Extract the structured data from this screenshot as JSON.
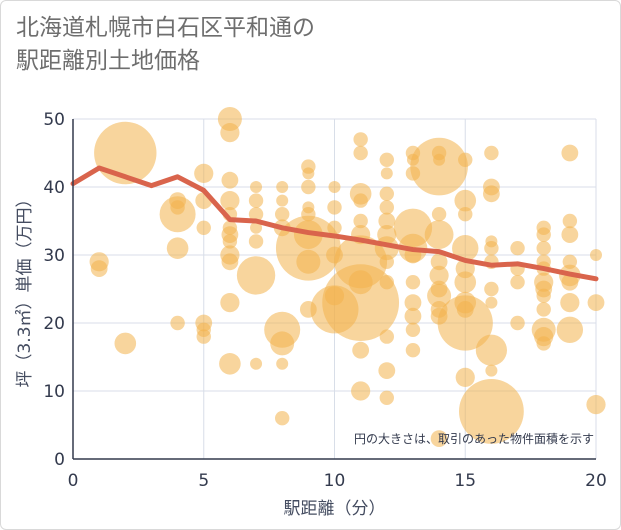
{
  "title": "北海道札幌市白石区平和通の\n駅距離別土地価格",
  "note": "円の大きさは、取引のあった物件面積を示す",
  "colors": {
    "bubble": "#f3b34d",
    "line": "#d9644c",
    "grid": "#d8dee8",
    "axis": "#333a4d"
  },
  "chart_data": {
    "type": "scatter",
    "xlabel": "駅距離（分）",
    "ylabel": "坪（3.3㎡）単価（万円）",
    "xlim": [
      0,
      20
    ],
    "ylim": [
      0,
      50
    ],
    "xticks": [
      "0",
      "5",
      "10",
      "15",
      "20"
    ],
    "yticks": [
      "0",
      "10",
      "20",
      "30",
      "40",
      "50"
    ],
    "grid": true,
    "bubbles": [
      {
        "x": 1,
        "y": 29,
        "s": 0.8
      },
      {
        "x": 1,
        "y": 28,
        "s": 0.7
      },
      {
        "x": 2,
        "y": 45,
        "s": 2.6
      },
      {
        "x": 2,
        "y": 17,
        "s": 0.9
      },
      {
        "x": 4,
        "y": 36,
        "s": 1.5
      },
      {
        "x": 4,
        "y": 38,
        "s": 0.7
      },
      {
        "x": 4,
        "y": 37,
        "s": 0.6
      },
      {
        "x": 4,
        "y": 31,
        "s": 0.9
      },
      {
        "x": 4,
        "y": 20,
        "s": 0.6
      },
      {
        "x": 5,
        "y": 42,
        "s": 0.8
      },
      {
        "x": 5,
        "y": 38,
        "s": 0.7
      },
      {
        "x": 5,
        "y": 34,
        "s": 0.6
      },
      {
        "x": 5,
        "y": 20,
        "s": 0.7
      },
      {
        "x": 5,
        "y": 19,
        "s": 0.6
      },
      {
        "x": 5,
        "y": 18,
        "s": 0.6
      },
      {
        "x": 6,
        "y": 50,
        "s": 1.0
      },
      {
        "x": 6,
        "y": 48,
        "s": 0.8
      },
      {
        "x": 6,
        "y": 41,
        "s": 0.7
      },
      {
        "x": 6,
        "y": 38,
        "s": 0.8
      },
      {
        "x": 6,
        "y": 36,
        "s": 0.6
      },
      {
        "x": 6,
        "y": 34,
        "s": 0.6
      },
      {
        "x": 6,
        "y": 33,
        "s": 0.7
      },
      {
        "x": 6,
        "y": 32,
        "s": 0.6
      },
      {
        "x": 6,
        "y": 30,
        "s": 0.8
      },
      {
        "x": 6,
        "y": 29,
        "s": 0.7
      },
      {
        "x": 6,
        "y": 23,
        "s": 0.8
      },
      {
        "x": 6,
        "y": 14,
        "s": 0.9
      },
      {
        "x": 7,
        "y": 40,
        "s": 0.5
      },
      {
        "x": 7,
        "y": 38,
        "s": 0.6
      },
      {
        "x": 7,
        "y": 36,
        "s": 0.6
      },
      {
        "x": 7,
        "y": 34,
        "s": 0.5
      },
      {
        "x": 7,
        "y": 32,
        "s": 0.6
      },
      {
        "x": 7,
        "y": 27,
        "s": 1.6
      },
      {
        "x": 7,
        "y": 14,
        "s": 0.5
      },
      {
        "x": 8,
        "y": 40,
        "s": 0.5
      },
      {
        "x": 8,
        "y": 38,
        "s": 0.5
      },
      {
        "x": 8,
        "y": 36,
        "s": 0.6
      },
      {
        "x": 8,
        "y": 34,
        "s": 0.7
      },
      {
        "x": 8,
        "y": 19,
        "s": 1.5
      },
      {
        "x": 8,
        "y": 17,
        "s": 1.0
      },
      {
        "x": 8,
        "y": 14,
        "s": 0.5
      },
      {
        "x": 8,
        "y": 6,
        "s": 0.6
      },
      {
        "x": 9,
        "y": 43,
        "s": 0.6
      },
      {
        "x": 9,
        "y": 42,
        "s": 0.5
      },
      {
        "x": 9,
        "y": 40,
        "s": 0.6
      },
      {
        "x": 9,
        "y": 37,
        "s": 0.5
      },
      {
        "x": 9,
        "y": 36,
        "s": 0.6
      },
      {
        "x": 9,
        "y": 33,
        "s": 1.2
      },
      {
        "x": 9,
        "y": 31,
        "s": 2.7
      },
      {
        "x": 9,
        "y": 29,
        "s": 1.0
      },
      {
        "x": 9,
        "y": 22,
        "s": 0.7
      },
      {
        "x": 10,
        "y": 40,
        "s": 0.5
      },
      {
        "x": 10,
        "y": 37,
        "s": 0.6
      },
      {
        "x": 10,
        "y": 34,
        "s": 0.6
      },
      {
        "x": 10,
        "y": 30,
        "s": 0.7
      },
      {
        "x": 10,
        "y": 24,
        "s": 0.8
      },
      {
        "x": 10,
        "y": 22,
        "s": 2.0
      },
      {
        "x": 11,
        "y": 47,
        "s": 0.6
      },
      {
        "x": 11,
        "y": 45,
        "s": 0.6
      },
      {
        "x": 11,
        "y": 39,
        "s": 0.9
      },
      {
        "x": 11,
        "y": 38,
        "s": 0.6
      },
      {
        "x": 11,
        "y": 35,
        "s": 0.6
      },
      {
        "x": 11,
        "y": 33,
        "s": 0.8
      },
      {
        "x": 11,
        "y": 29,
        "s": 2.2
      },
      {
        "x": 11,
        "y": 26,
        "s": 1.0
      },
      {
        "x": 11,
        "y": 23,
        "s": 3.2
      },
      {
        "x": 11,
        "y": 16,
        "s": 0.7
      },
      {
        "x": 11,
        "y": 10,
        "s": 0.8
      },
      {
        "x": 12,
        "y": 44,
        "s": 0.6
      },
      {
        "x": 12,
        "y": 42,
        "s": 0.5
      },
      {
        "x": 12,
        "y": 39,
        "s": 0.6
      },
      {
        "x": 12,
        "y": 37,
        "s": 0.6
      },
      {
        "x": 12,
        "y": 35,
        "s": 0.7
      },
      {
        "x": 12,
        "y": 33,
        "s": 0.8
      },
      {
        "x": 12,
        "y": 31,
        "s": 1.0
      },
      {
        "x": 12,
        "y": 29,
        "s": 0.6
      },
      {
        "x": 12,
        "y": 26,
        "s": 0.6
      },
      {
        "x": 12,
        "y": 18,
        "s": 0.6
      },
      {
        "x": 12,
        "y": 13,
        "s": 0.7
      },
      {
        "x": 12,
        "y": 9,
        "s": 0.6
      },
      {
        "x": 13,
        "y": 45,
        "s": 0.6
      },
      {
        "x": 13,
        "y": 44,
        "s": 0.5
      },
      {
        "x": 13,
        "y": 42,
        "s": 0.6
      },
      {
        "x": 13,
        "y": 34,
        "s": 1.6
      },
      {
        "x": 13,
        "y": 31,
        "s": 1.2
      },
      {
        "x": 13,
        "y": 30,
        "s": 0.7
      },
      {
        "x": 13,
        "y": 26,
        "s": 0.6
      },
      {
        "x": 13,
        "y": 23,
        "s": 0.7
      },
      {
        "x": 13,
        "y": 21,
        "s": 0.7
      },
      {
        "x": 13,
        "y": 19,
        "s": 0.6
      },
      {
        "x": 13,
        "y": 16,
        "s": 0.6
      },
      {
        "x": 14,
        "y": 45,
        "s": 0.6
      },
      {
        "x": 14,
        "y": 44,
        "s": 0.5
      },
      {
        "x": 14,
        "y": 43,
        "s": 2.4
      },
      {
        "x": 14,
        "y": 36,
        "s": 0.6
      },
      {
        "x": 14,
        "y": 33,
        "s": 1.2
      },
      {
        "x": 14,
        "y": 29,
        "s": 0.7
      },
      {
        "x": 14,
        "y": 27,
        "s": 0.8
      },
      {
        "x": 14,
        "y": 25,
        "s": 0.7
      },
      {
        "x": 14,
        "y": 24,
        "s": 1.0
      },
      {
        "x": 14,
        "y": 22,
        "s": 0.7
      },
      {
        "x": 14,
        "y": 21,
        "s": 0.7
      },
      {
        "x": 14,
        "y": 3,
        "s": 0.7
      },
      {
        "x": 15,
        "y": 44,
        "s": 0.6
      },
      {
        "x": 15,
        "y": 38,
        "s": 0.9
      },
      {
        "x": 15,
        "y": 36,
        "s": 0.6
      },
      {
        "x": 15,
        "y": 31,
        "s": 1.1
      },
      {
        "x": 15,
        "y": 28,
        "s": 0.8
      },
      {
        "x": 15,
        "y": 26,
        "s": 0.9
      },
      {
        "x": 15,
        "y": 23,
        "s": 0.9
      },
      {
        "x": 15,
        "y": 22,
        "s": 0.7
      },
      {
        "x": 15,
        "y": 20,
        "s": 2.3
      },
      {
        "x": 15,
        "y": 12,
        "s": 0.8
      },
      {
        "x": 16,
        "y": 45,
        "s": 0.6
      },
      {
        "x": 16,
        "y": 40,
        "s": 0.7
      },
      {
        "x": 16,
        "y": 39,
        "s": 0.7
      },
      {
        "x": 16,
        "y": 32,
        "s": 0.5
      },
      {
        "x": 16,
        "y": 31,
        "s": 0.6
      },
      {
        "x": 16,
        "y": 29,
        "s": 0.6
      },
      {
        "x": 16,
        "y": 25,
        "s": 0.6
      },
      {
        "x": 16,
        "y": 23,
        "s": 0.5
      },
      {
        "x": 16,
        "y": 16,
        "s": 1.3
      },
      {
        "x": 16,
        "y": 13,
        "s": 0.5
      },
      {
        "x": 16,
        "y": 7,
        "s": 2.7
      },
      {
        "x": 17,
        "y": 31,
        "s": 0.6
      },
      {
        "x": 17,
        "y": 28,
        "s": 0.6
      },
      {
        "x": 17,
        "y": 26,
        "s": 0.6
      },
      {
        "x": 17,
        "y": 20,
        "s": 0.6
      },
      {
        "x": 18,
        "y": 34,
        "s": 0.6
      },
      {
        "x": 18,
        "y": 33,
        "s": 0.6
      },
      {
        "x": 18,
        "y": 31,
        "s": 0.6
      },
      {
        "x": 18,
        "y": 29,
        "s": 0.6
      },
      {
        "x": 18,
        "y": 28,
        "s": 0.6
      },
      {
        "x": 18,
        "y": 26,
        "s": 0.8
      },
      {
        "x": 18,
        "y": 25,
        "s": 0.7
      },
      {
        "x": 18,
        "y": 24,
        "s": 0.6
      },
      {
        "x": 18,
        "y": 22,
        "s": 0.6
      },
      {
        "x": 18,
        "y": 19,
        "s": 1.0
      },
      {
        "x": 18,
        "y": 18,
        "s": 0.8
      },
      {
        "x": 18,
        "y": 17,
        "s": 0.6
      },
      {
        "x": 19,
        "y": 45,
        "s": 0.7
      },
      {
        "x": 19,
        "y": 35,
        "s": 0.6
      },
      {
        "x": 19,
        "y": 33,
        "s": 0.7
      },
      {
        "x": 19,
        "y": 29,
        "s": 0.6
      },
      {
        "x": 19,
        "y": 27,
        "s": 0.9
      },
      {
        "x": 19,
        "y": 26,
        "s": 0.7
      },
      {
        "x": 19,
        "y": 23,
        "s": 0.8
      },
      {
        "x": 19,
        "y": 19,
        "s": 1.1
      },
      {
        "x": 20,
        "y": 30,
        "s": 0.5
      },
      {
        "x": 20,
        "y": 23,
        "s": 0.7
      },
      {
        "x": 20,
        "y": 8,
        "s": 0.8
      }
    ],
    "series": [
      {
        "type": "line",
        "x": [
          0,
          1,
          2,
          3,
          4,
          5,
          6,
          7,
          8,
          9,
          10,
          11,
          12,
          13,
          14,
          15,
          16,
          17,
          18,
          19,
          20
        ],
        "y": [
          40.5,
          42.8,
          41.5,
          40.2,
          41.5,
          39.5,
          35.2,
          35,
          34,
          33.3,
          32.8,
          32.2,
          31.5,
          30.8,
          30.5,
          29.2,
          28.5,
          28.7,
          28,
          27.2,
          26.5
        ]
      }
    ]
  }
}
